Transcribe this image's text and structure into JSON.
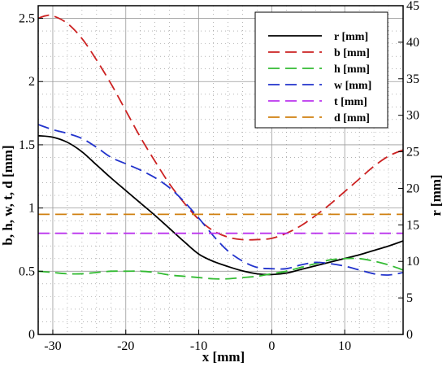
{
  "chart_data": {
    "type": "line",
    "xlabel": "x [mm]",
    "ylabel_left": "b, h, w, t, d [mm]",
    "ylabel_right": "r [mm]",
    "xlim": [
      -32,
      18
    ],
    "ylim_left": [
      0,
      2.6
    ],
    "ylim_right": [
      0,
      45
    ],
    "grid": true,
    "legend_position": "top-right",
    "x_ticks": [
      -30,
      -20,
      -10,
      0,
      10
    ],
    "y_left_ticks": [
      0,
      0.5,
      1,
      1.5,
      2,
      2.5
    ],
    "y_right_ticks": [
      0,
      5,
      10,
      15,
      20,
      25,
      30,
      35,
      40,
      45
    ],
    "series": [
      {
        "name": "r [mm]",
        "axis": "right",
        "color": "#000000",
        "dashed": false,
        "x": [
          -32,
          -30,
          -28,
          -26,
          -24,
          -22,
          -20,
          -18,
          -16,
          -14,
          -12,
          -10,
          -8,
          -6,
          -4,
          -2,
          0,
          2,
          4,
          6,
          8,
          10,
          12,
          14,
          16,
          18
        ],
        "y": [
          27.2,
          27.0,
          26.3,
          25.0,
          23.2,
          21.4,
          19.7,
          18.0,
          16.3,
          14.5,
          12.7,
          11.0,
          10.0,
          9.3,
          8.7,
          8.3,
          8.2,
          8.4,
          8.9,
          9.4,
          9.9,
          10.4,
          10.9,
          11.5,
          12.1,
          12.8
        ]
      },
      {
        "name": "b [mm]",
        "axis": "left",
        "color": "#cc2222",
        "dashed": true,
        "x": [
          -32,
          -31,
          -30,
          -28,
          -26,
          -24,
          -22,
          -20,
          -18,
          -16,
          -14,
          -12,
          -10,
          -8,
          -6,
          -4,
          -2,
          0,
          2,
          4,
          6,
          8,
          10,
          12,
          14,
          16,
          18
        ],
        "y": [
          2.5,
          2.52,
          2.52,
          2.46,
          2.34,
          2.17,
          1.98,
          1.77,
          1.56,
          1.37,
          1.19,
          1.04,
          0.91,
          0.82,
          0.77,
          0.75,
          0.75,
          0.76,
          0.8,
          0.86,
          0.94,
          1.03,
          1.13,
          1.23,
          1.33,
          1.41,
          1.46
        ]
      },
      {
        "name": "h [mm]",
        "axis": "left",
        "color": "#33bb33",
        "dashed": true,
        "x": [
          -32,
          -30,
          -28,
          -26,
          -24,
          -22,
          -20,
          -18,
          -16,
          -14,
          -12,
          -10,
          -8,
          -6,
          -4,
          -2,
          0,
          2,
          4,
          6,
          8,
          10,
          12,
          14,
          16,
          18
        ],
        "y": [
          0.5,
          0.49,
          0.48,
          0.48,
          0.49,
          0.5,
          0.5,
          0.5,
          0.49,
          0.47,
          0.46,
          0.45,
          0.44,
          0.44,
          0.45,
          0.46,
          0.48,
          0.5,
          0.53,
          0.56,
          0.59,
          0.6,
          0.6,
          0.58,
          0.55,
          0.51
        ]
      },
      {
        "name": "w [mm]",
        "axis": "left",
        "color": "#2233cc",
        "dashed": true,
        "x": [
          -32,
          -30,
          -28,
          -26,
          -24,
          -22,
          -20,
          -18,
          -16,
          -14,
          -12,
          -10,
          -8,
          -6,
          -4,
          -2,
          0,
          2,
          4,
          6,
          8,
          10,
          12,
          14,
          16,
          18
        ],
        "y": [
          1.66,
          1.62,
          1.59,
          1.55,
          1.48,
          1.4,
          1.35,
          1.3,
          1.24,
          1.16,
          1.05,
          0.92,
          0.78,
          0.66,
          0.58,
          0.53,
          0.52,
          0.52,
          0.55,
          0.57,
          0.56,
          0.54,
          0.51,
          0.48,
          0.47,
          0.49
        ]
      },
      {
        "name": "t [mm]",
        "axis": "left",
        "color": "#bb33ee",
        "dashed": true,
        "x": [
          -32,
          18
        ],
        "y": [
          0.8,
          0.8
        ]
      },
      {
        "name": "d [mm]",
        "axis": "left",
        "color": "#d08010",
        "dashed": true,
        "x": [
          -32,
          18
        ],
        "y": [
          0.95,
          0.95
        ]
      }
    ]
  }
}
